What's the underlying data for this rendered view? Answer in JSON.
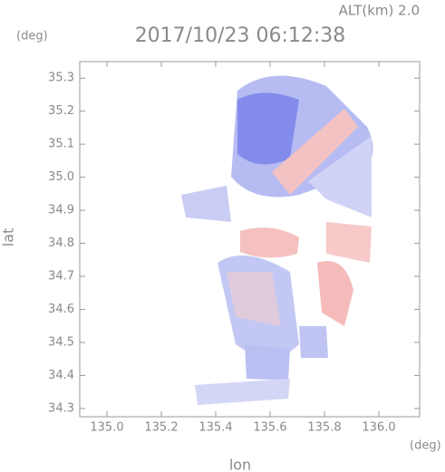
{
  "chart_data": {
    "type": "image",
    "title": "2017/10/23 06:12:38",
    "altitude_label": "ALT(km) 2.0",
    "x_label": "lon",
    "y_label": "lat",
    "x_unit": "(deg)",
    "y_unit": "(deg)",
    "xlim": [
      134.9,
      136.15
    ],
    "ylim": [
      34.275,
      35.35
    ],
    "xticks": [
      {
        "value": 135,
        "label": "135.0"
      },
      135.2,
      135.4,
      135.6,
      135.8,
      {
        "value": 136,
        "label": "136.0"
      }
    ],
    "yticks": [
      34.3,
      34.4,
      34.5,
      34.6,
      34.7,
      34.8,
      34.9,
      {
        "value": 35,
        "label": "35.0"
      },
      35.1,
      35.2,
      35.3
    ]
  }
}
